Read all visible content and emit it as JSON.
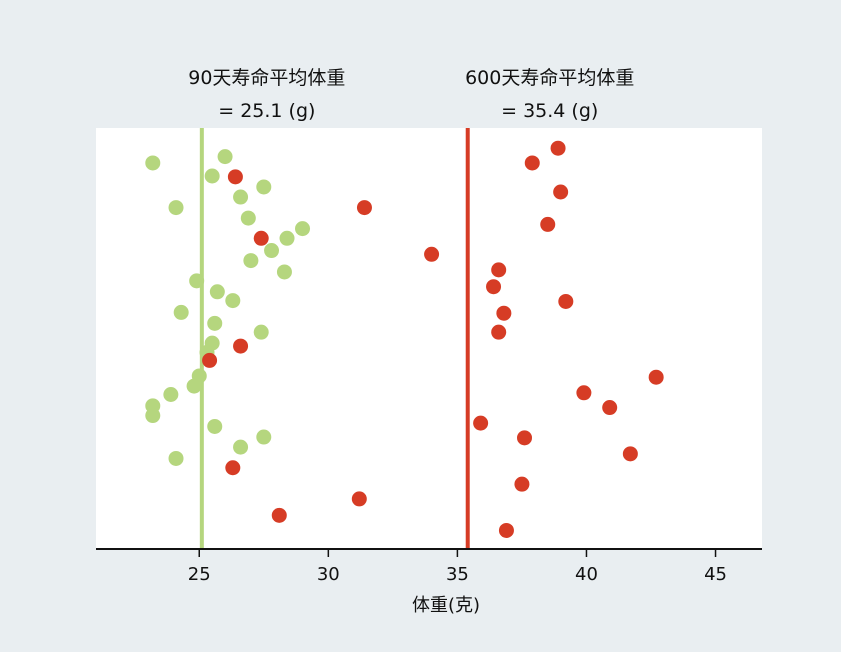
{
  "chart_data": {
    "type": "scatter",
    "title": "",
    "xlabel": "体重(克)",
    "ylabel": "",
    "xlim": [
      21,
      46.8
    ],
    "ylim": [
      0,
      1
    ],
    "xticks": [
      25,
      30,
      35,
      40,
      45
    ],
    "xtick_labels": [
      "25",
      "30",
      "35",
      "40",
      "45"
    ],
    "grid": false,
    "annotations": [
      {
        "line1": "90天寿命平均体重",
        "line2": "= 25.1 (g)",
        "x": 25.1,
        "color": "#b5d67e"
      },
      {
        "line1": "600天寿命平均体重",
        "line2": "= 35.4 (g)",
        "x": 35.4,
        "color": "#d63c25"
      }
    ],
    "series": [
      {
        "color": "#b5d67e",
        "mean": 25.1,
        "points": [
          {
            "x": 26.0,
            "y": 0.932
          },
          {
            "x": 23.2,
            "y": 0.917
          },
          {
            "x": 25.5,
            "y": 0.886
          },
          {
            "x": 27.5,
            "y": 0.86
          },
          {
            "x": 26.6,
            "y": 0.836
          },
          {
            "x": 24.1,
            "y": 0.811
          },
          {
            "x": 26.9,
            "y": 0.786
          },
          {
            "x": 29.0,
            "y": 0.761
          },
          {
            "x": 28.4,
            "y": 0.738
          },
          {
            "x": 27.8,
            "y": 0.709
          },
          {
            "x": 27.0,
            "y": 0.685
          },
          {
            "x": 28.3,
            "y": 0.658
          },
          {
            "x": 24.9,
            "y": 0.637
          },
          {
            "x": 25.7,
            "y": 0.611
          },
          {
            "x": 26.3,
            "y": 0.59
          },
          {
            "x": 24.3,
            "y": 0.562
          },
          {
            "x": 25.6,
            "y": 0.536
          },
          {
            "x": 27.4,
            "y": 0.515
          },
          {
            "x": 25.5,
            "y": 0.489
          },
          {
            "x": 25.3,
            "y": 0.467
          },
          {
            "x": 25.0,
            "y": 0.411
          },
          {
            "x": 24.8,
            "y": 0.387
          },
          {
            "x": 23.9,
            "y": 0.367
          },
          {
            "x": 23.2,
            "y": 0.34
          },
          {
            "x": 23.2,
            "y": 0.317
          },
          {
            "x": 25.6,
            "y": 0.291
          },
          {
            "x": 27.5,
            "y": 0.266
          },
          {
            "x": 26.6,
            "y": 0.242
          },
          {
            "x": 24.1,
            "y": 0.215
          }
        ]
      },
      {
        "color": "#d63c25",
        "mean": 35.4,
        "points": [
          {
            "x": 38.9,
            "y": 0.952
          },
          {
            "x": 37.9,
            "y": 0.917
          },
          {
            "x": 26.4,
            "y": 0.884
          },
          {
            "x": 39.0,
            "y": 0.848
          },
          {
            "x": 31.4,
            "y": 0.811
          },
          {
            "x": 38.5,
            "y": 0.771
          },
          {
            "x": 27.4,
            "y": 0.738
          },
          {
            "x": 34.0,
            "y": 0.7
          },
          {
            "x": 36.6,
            "y": 0.663
          },
          {
            "x": 36.4,
            "y": 0.623
          },
          {
            "x": 39.2,
            "y": 0.588
          },
          {
            "x": 36.8,
            "y": 0.56
          },
          {
            "x": 36.6,
            "y": 0.515
          },
          {
            "x": 26.6,
            "y": 0.482
          },
          {
            "x": 25.4,
            "y": 0.448
          },
          {
            "x": 42.7,
            "y": 0.408
          },
          {
            "x": 39.9,
            "y": 0.371
          },
          {
            "x": 40.9,
            "y": 0.336
          },
          {
            "x": 35.9,
            "y": 0.299
          },
          {
            "x": 37.6,
            "y": 0.264
          },
          {
            "x": 41.7,
            "y": 0.226
          },
          {
            "x": 26.3,
            "y": 0.193
          },
          {
            "x": 37.5,
            "y": 0.154
          },
          {
            "x": 31.2,
            "y": 0.119
          },
          {
            "x": 28.1,
            "y": 0.08
          },
          {
            "x": 36.9,
            "y": 0.044
          }
        ]
      }
    ]
  }
}
